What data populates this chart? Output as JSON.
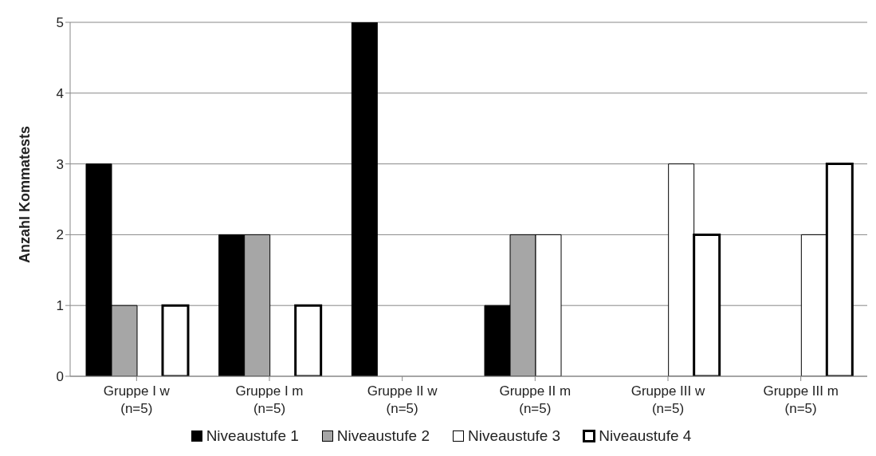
{
  "chart_data": {
    "type": "bar",
    "ylabel": "Anzahl Kommatests",
    "categories": [
      "Gruppe I w (n=5)",
      "Gruppe I m (n=5)",
      "Gruppe II w (n=5)",
      "Gruppe II m (n=5)",
      "Gruppe III w (n=5)",
      "Gruppe III m (n=5)"
    ],
    "series": [
      {
        "name": "Niveaustufe 1",
        "color": "#000000",
        "values": [
          3,
          2,
          5,
          1,
          0,
          0
        ]
      },
      {
        "name": "Niveaustufe 2",
        "color": "#a6a6a6",
        "values": [
          1,
          2,
          0,
          2,
          0,
          0
        ]
      },
      {
        "name": "Niveaustufe 3",
        "color": "#ffffff",
        "values": [
          0,
          0,
          0,
          2,
          3,
          2
        ]
      },
      {
        "name": "Niveaustufe 4",
        "color": "#ffffff",
        "values": [
          1,
          1,
          0,
          0,
          2,
          3
        ]
      }
    ],
    "ylim": [
      0,
      5
    ],
    "yticks": [
      0,
      1,
      2,
      3,
      4,
      5
    ],
    "grid": "y",
    "legend": "bottom"
  }
}
